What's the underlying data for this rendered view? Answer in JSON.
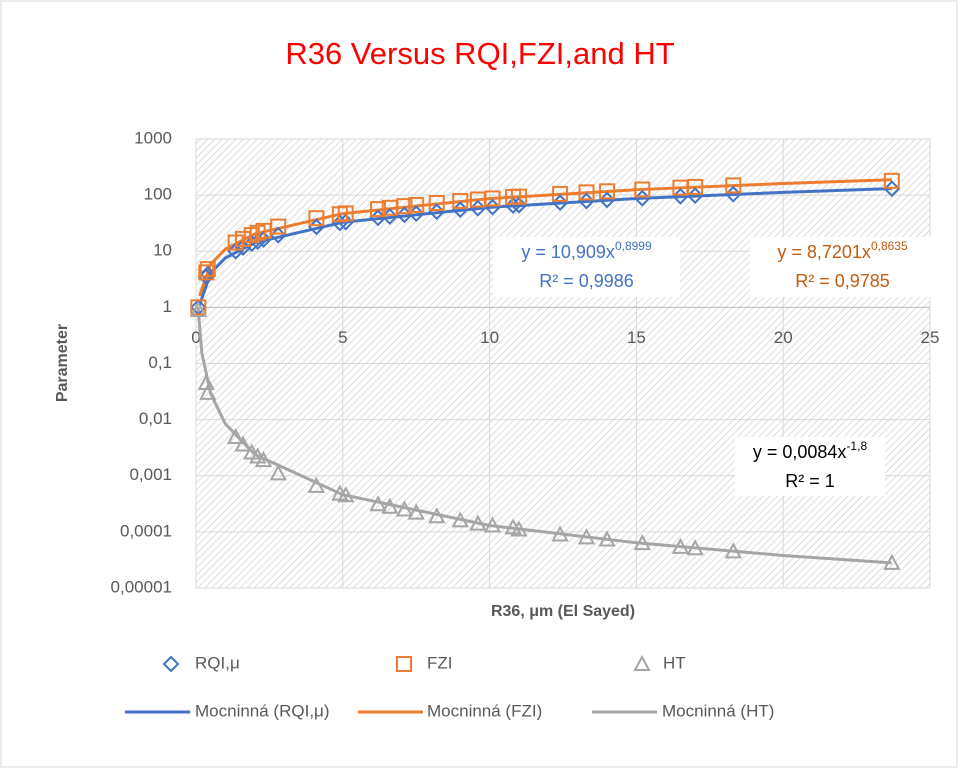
{
  "chart_data": {
    "type": "scatter",
    "title": "R36 Versus RQI,FZI,and HT",
    "x_label": "R36, μm (El Sayed)",
    "y_label": "Parameter",
    "log_y": true,
    "grid": true,
    "xlim": [
      0,
      25
    ],
    "xticks": [
      0,
      5,
      10,
      15,
      20,
      25
    ],
    "ylim": [
      1e-05,
      1000
    ],
    "yticks": [
      1000,
      100,
      10,
      1,
      {
        "value": 0.1,
        "label": "0,1"
      },
      {
        "value": 0.01,
        "label": "0,01"
      },
      {
        "value": 0.001,
        "label": "0,001"
      },
      {
        "value": 0.0001,
        "label": "0,0001"
      },
      {
        "value": 1e-05,
        "label": "0,00001"
      }
    ],
    "x_axis_at": 1,
    "series": [
      {
        "name": "RQI,μ",
        "color": "#4472c4",
        "marker": "diamond",
        "x": [
          0.08,
          0.35,
          0.4,
          1.35,
          1.6,
          1.9,
          2.1,
          2.3,
          2.8,
          4.1,
          4.9,
          5.1,
          6.2,
          6.6,
          7.1,
          7.5,
          8.2,
          9.0,
          9.6,
          10.1,
          10.8,
          11.0,
          12.4,
          13.3,
          14.0,
          15.2,
          16.5,
          17.0,
          18.3,
          23.7
        ],
        "values": [
          1,
          3.5,
          3.9,
          10,
          11.6,
          13.6,
          14.9,
          16.2,
          19.3,
          27.2,
          31.9,
          33,
          39.4,
          41.7,
          44.5,
          46.8,
          50.7,
          55.2,
          58.5,
          61.1,
          65,
          66,
          73.5,
          78.4,
          81.9,
          88.2,
          95.2,
          98,
          104,
          130
        ]
      },
      {
        "name": "FZI",
        "color": "#ed7d31",
        "marker": "square",
        "x": [
          0.08,
          0.35,
          0.4,
          1.35,
          1.6,
          1.9,
          2.1,
          2.3,
          2.8,
          4.1,
          4.9,
          5.1,
          6.2,
          6.6,
          7.1,
          7.5,
          8.2,
          9.0,
          9.6,
          10.1,
          10.8,
          11.0,
          12.4,
          13.3,
          14.0,
          15.2,
          16.5,
          17.0,
          18.3,
          23.7
        ],
        "values": [
          1,
          4.2,
          4.8,
          14.3,
          16.6,
          19.4,
          21.3,
          23.1,
          27.5,
          38.8,
          45.6,
          47.2,
          56.3,
          59.5,
          63.6,
          66.8,
          72.4,
          78.8,
          83.5,
          87.3,
          92.8,
          94.3,
          105,
          112,
          117,
          126,
          136,
          140,
          149,
          180
        ]
      },
      {
        "name": "HT",
        "color": "#a5a5a5",
        "marker": "triangle",
        "x": [
          0.08,
          0.35,
          0.4,
          1.35,
          1.6,
          1.9,
          2.1,
          2.3,
          2.8,
          4.1,
          4.9,
          5.1,
          6.2,
          6.6,
          7.1,
          7.5,
          8.2,
          9.0,
          9.6,
          10.1,
          10.8,
          11.0,
          12.4,
          13.3,
          14.0,
          15.2,
          16.5,
          17.0,
          18.3,
          23.7
        ],
        "values": [
          0.9,
          0.045,
          0.03,
          0.0049,
          0.0036,
          0.0026,
          0.0022,
          0.0019,
          0.0011,
          0.00066,
          0.00048,
          0.00045,
          0.00031,
          0.00028,
          0.00025,
          0.00022,
          0.00019,
          0.00016,
          0.00014,
          0.00013,
          0.00012,
          0.00011,
          9e-05,
          8e-05,
          7.3e-05,
          6.3e-05,
          5.4e-05,
          5.1e-05,
          4.5e-05,
          2.8e-05
        ]
      },
      {
        "name": "Mocninná (RQI,μ)",
        "color": "#4472c4",
        "marker": "line",
        "x": [
          0.12,
          0.5,
          1,
          2,
          5,
          10,
          15,
          20,
          23.7
        ],
        "values": [
          1.1,
          4.1,
          7.6,
          14.2,
          32.8,
          60.6,
          87,
          112,
          131
        ]
      },
      {
        "name": "Mocninná (FZI)",
        "color": "#ed7d31",
        "marker": "line",
        "x": [
          0.12,
          0.5,
          1,
          2,
          5,
          10,
          15,
          20,
          23.7
        ],
        "values": [
          1.6,
          5.9,
          10.9,
          20.4,
          46.9,
          86.8,
          125,
          161,
          188
        ]
      },
      {
        "name": "Mocninná (HT)",
        "color": "#a5a5a5",
        "marker": "line",
        "x": [
          0.07,
          0.2,
          0.5,
          1,
          2,
          5,
          10,
          15,
          20,
          23.7
        ],
        "values": [
          1.0,
          0.152,
          0.029,
          0.0084,
          0.0024,
          0.00046,
          0.00013,
          6.4e-05,
          3.8e-05,
          2.8e-05
        ]
      }
    ],
    "annotations": [
      {
        "equation": "y = 10,909x",
        "exponent": "0,8999",
        "r2": "R² = 0,9986",
        "color": "#4472c4"
      },
      {
        "equation": "y = 8,7201x",
        "exponent": "0,8635",
        "r2": "R² = 0,9785",
        "color": "#c55a11"
      },
      {
        "equation": "y = 0,0084x",
        "exponent": "-1,8",
        "r2": "R² = 1",
        "color": "#000000"
      }
    ]
  }
}
